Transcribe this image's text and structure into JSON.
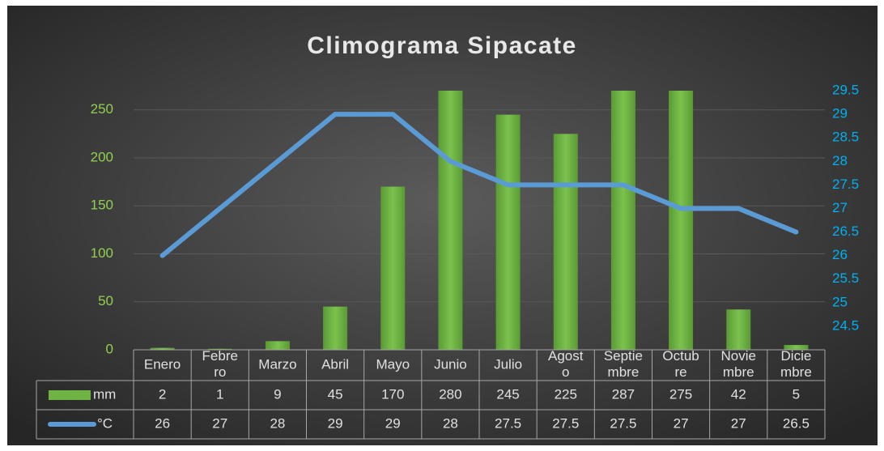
{
  "chart_data": {
    "type": "bar_line",
    "title": "Climograma Sipacate",
    "categories": [
      "Enero",
      "Febrero",
      "Marzo",
      "Abril",
      "Mayo",
      "Junio",
      "Julio",
      "Agosto",
      "Septiembre",
      "Octubre",
      "Noviembre",
      "Diciembre"
    ],
    "series": [
      {
        "name": "mm",
        "type": "bar",
        "color": "#6fb443",
        "values": [
          2,
          1,
          9,
          45,
          170,
          280,
          245,
          225,
          287,
          275,
          42,
          5
        ]
      },
      {
        "name": "°C",
        "type": "line",
        "axis": "y2",
        "color": "#5b9bd5",
        "values": [
          26,
          27,
          28,
          29,
          29,
          28,
          27.5,
          27.5,
          27.5,
          27,
          27,
          26.5
        ]
      }
    ],
    "ylim": [
      0,
      270
    ],
    "yticks": [
      0,
      50,
      100,
      150,
      200,
      250
    ],
    "y2lim": [
      24,
      29.5
    ],
    "y2ticks": [
      24.5,
      25,
      25.5,
      26,
      26.5,
      27,
      27.5,
      28,
      28.5,
      29,
      29.5
    ],
    "grid": true,
    "data_table": true
  }
}
